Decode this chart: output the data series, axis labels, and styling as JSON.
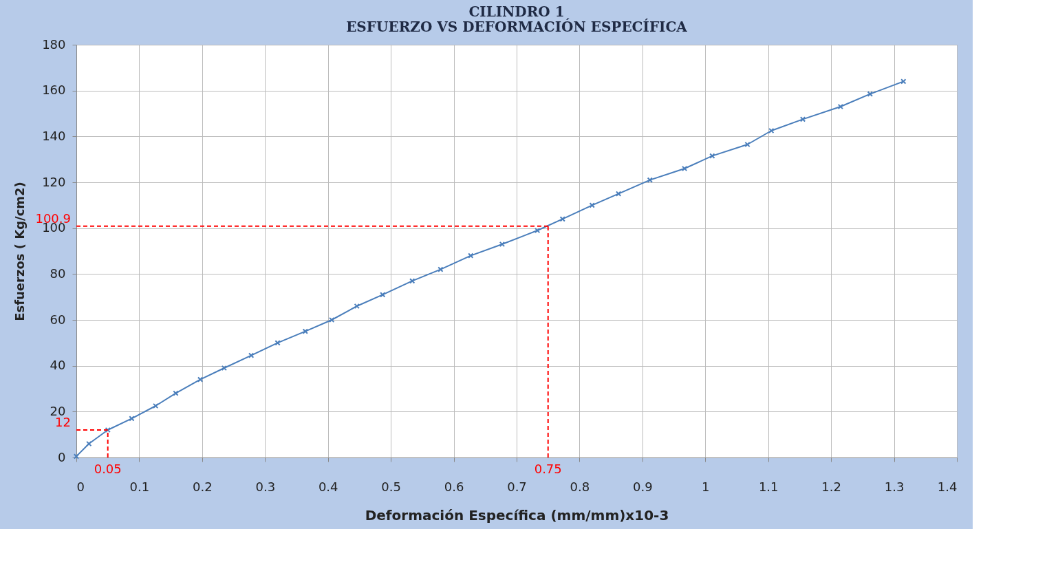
{
  "chart_data": {
    "type": "line",
    "title": "CILINDRO 1",
    "subtitle": "ESFUERZO VS DEFORMACIÓN ESPECÍFICA",
    "xlabel": "Deformación Específica (mm/mm)x10-3",
    "ylabel": "Esfuerzos ( Kg/cm2)",
    "x": [
      0,
      0.02,
      0.05,
      0.088,
      0.126,
      0.158,
      0.197,
      0.235,
      0.278,
      0.32,
      0.364,
      0.406,
      0.446,
      0.487,
      0.534,
      0.579,
      0.627,
      0.677,
      0.733,
      0.773,
      0.82,
      0.862,
      0.912,
      0.967,
      1.011,
      1.067,
      1.105,
      1.155,
      1.215,
      1.262,
      1.315
    ],
    "series": [
      {
        "color": "#4a7ebb",
        "values": [
          0.5,
          6,
          12,
          17,
          22.5,
          28,
          34,
          39,
          44.5,
          50,
          55,
          60,
          66,
          71,
          77,
          82,
          88,
          93,
          99,
          104,
          110,
          115,
          121,
          126,
          131.5,
          136.5,
          142.5,
          147.5,
          153,
          158.5,
          164
        ]
      }
    ],
    "xlim": [
      0,
      1.4
    ],
    "xticks": [
      0,
      0.1,
      0.2,
      0.3,
      0.4,
      0.5,
      0.6,
      0.7,
      0.8,
      0.9,
      1,
      1.1,
      1.2,
      1.3,
      1.4
    ],
    "ylim": [
      0,
      180
    ],
    "yticks": [
      0,
      20,
      40,
      60,
      80,
      100,
      120,
      140,
      160,
      180
    ],
    "ref_lines": [
      {
        "axis": "y",
        "value": 100.9,
        "label": "100.9",
        "color": "#ff0000",
        "line_style": "dashed"
      },
      {
        "axis": "x",
        "value": 0.75,
        "label": "0.75",
        "color": "#ff0000",
        "line_style": "dashed"
      },
      {
        "axis": "y",
        "value": 12,
        "label": "12",
        "color": "#ff0000",
        "line_style": "dashed"
      },
      {
        "axis": "x",
        "value": 0.05,
        "label": "0.05",
        "color": "#ff0000",
        "line_style": "dashed"
      }
    ],
    "grid": true,
    "marker": "cross",
    "line_style": "solid"
  }
}
